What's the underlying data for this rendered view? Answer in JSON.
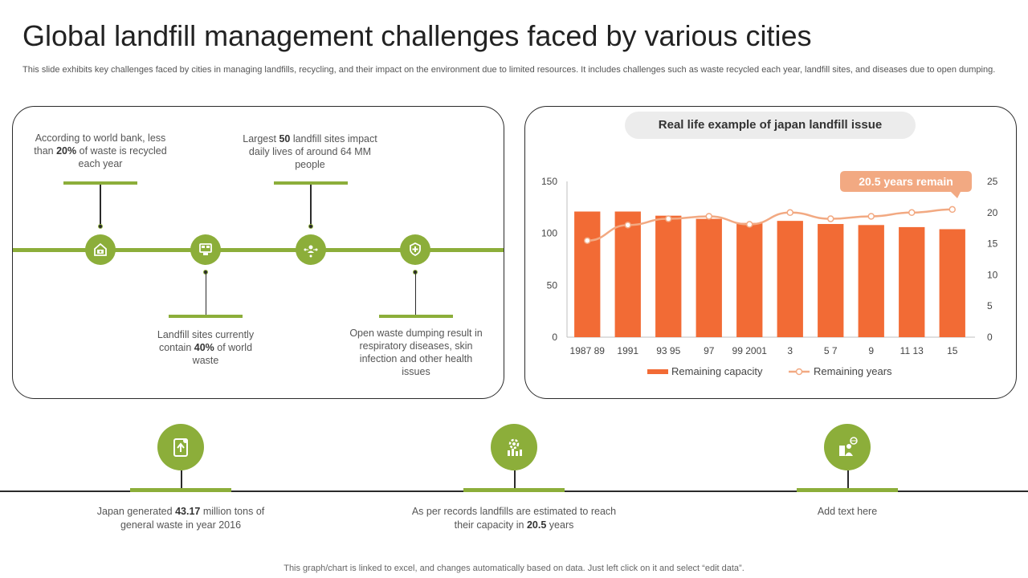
{
  "title": "Global landfill management challenges faced by various cities",
  "subtitle": "This slide exhibits key challenges faced by cities in managing landfills, recycling, and their impact on the environment due to limited resources. It includes challenges such as waste recycled each year, landfill sites, and diseases due to open dumping.",
  "timeline": {
    "items": [
      {
        "icon": "money-house-icon",
        "text_pre": "According to world bank, less than ",
        "bold": "20%",
        "text_post": " of waste is recycled each year"
      },
      {
        "icon": "document-screen-icon",
        "text_pre": "Landfill sites currently contain ",
        "bold": "40%",
        "text_post": " of world waste"
      },
      {
        "icon": "people-network-icon",
        "text_pre": "Largest ",
        "bold": "50",
        "text_post": " landfill sites impact daily lives of around 64 MM people"
      },
      {
        "icon": "healthcare-hand-icon",
        "text_pre": "",
        "bold": "",
        "text_post": "Open waste dumping result in respiratory diseases, skin infection and other health issues"
      }
    ]
  },
  "chart_panel": {
    "title": "Real life example of japan landfill issue",
    "callout": "20.5 years remain"
  },
  "chart_data": {
    "type": "bar",
    "categories": [
      "1987 89",
      "1991",
      "93 95",
      "97",
      "99 2001",
      "3",
      "5 7",
      "9",
      "11 13",
      "15"
    ],
    "series": [
      {
        "name": "Remaining capacity",
        "type": "bar",
        "axis": "left",
        "color": "#f26b35",
        "values": [
          121,
          121,
          117,
          114,
          110,
          112,
          109,
          108,
          106,
          104
        ]
      },
      {
        "name": "Remaining years",
        "type": "line",
        "axis": "right",
        "color": "#f2a982",
        "values": [
          15.5,
          18,
          19,
          19.4,
          18.1,
          20,
          19,
          19.4,
          20,
          20.5
        ]
      }
    ],
    "ylim_left": [
      0,
      150
    ],
    "yticks_left": [
      0,
      50,
      100,
      150
    ],
    "ylim_right": [
      0,
      25
    ],
    "yticks_right": [
      0,
      5,
      10,
      15,
      20,
      25
    ],
    "legend_position": "bottom",
    "grid": false
  },
  "bottom": {
    "items": [
      {
        "icon": "recycle-bin-icon",
        "text_pre": "Japan generated ",
        "bold": "43.17",
        "text_post": " million tons of general waste in year 2016"
      },
      {
        "icon": "gear-chart-icon",
        "text_pre": "As per records landfills are estimated to reach their capacity in ",
        "bold": "20.5",
        "text_post": " years"
      },
      {
        "icon": "city-globe-icon",
        "text_pre": "Add text here",
        "bold": "",
        "text_post": ""
      }
    ]
  },
  "footer": "This graph/chart is linked to excel, and changes automatically based on data. Just left click on it and select “edit data”.",
  "colors": {
    "accent_green": "#8cae3a",
    "bar_orange": "#f26b35",
    "line_peach": "#f2a982"
  }
}
